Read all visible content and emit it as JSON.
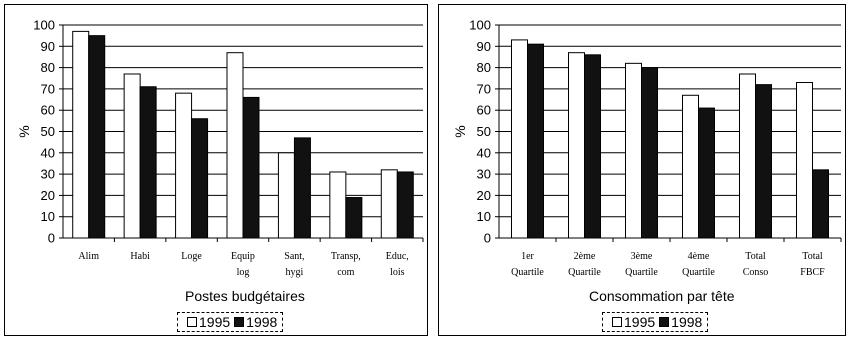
{
  "chart_data": [
    {
      "type": "bar",
      "xlabel": "Postes budgétaires",
      "ylabel": "%",
      "ylim": [
        0,
        100
      ],
      "yticks": [
        0,
        10,
        20,
        30,
        40,
        50,
        60,
        70,
        80,
        90,
        100
      ],
      "grid": "horizontal",
      "legend": "bottom",
      "categories": [
        [
          "Alim"
        ],
        [
          "Habi"
        ],
        [
          "Loge"
        ],
        [
          "Equip",
          "log"
        ],
        [
          "Sant,",
          "hygi"
        ],
        [
          "Transp,",
          "com"
        ],
        [
          "Educ,",
          "lois"
        ]
      ],
      "series": [
        {
          "name": "1995",
          "color": "#ffffff",
          "values": [
            97,
            77,
            68,
            87,
            40,
            31,
            32
          ]
        },
        {
          "name": "1998",
          "color": "#111111",
          "values": [
            95,
            71,
            56,
            66,
            47,
            19,
            31
          ]
        }
      ]
    },
    {
      "type": "bar",
      "xlabel": "Consommation par tête",
      "ylabel": "%",
      "ylim": [
        0,
        100
      ],
      "yticks": [
        0,
        10,
        20,
        30,
        40,
        50,
        60,
        70,
        80,
        90,
        100
      ],
      "grid": "horizontal",
      "legend": "bottom",
      "categories": [
        [
          "1er",
          "Quartile"
        ],
        [
          "2ème",
          "Quartile"
        ],
        [
          "3ème",
          "Quartile"
        ],
        [
          "4ème",
          "Quartile"
        ],
        [
          "Total",
          "Conso"
        ],
        [
          "Total",
          "FBCF"
        ]
      ],
      "series": [
        {
          "name": "1995",
          "color": "#ffffff",
          "values": [
            93,
            87,
            82,
            67,
            77,
            73
          ]
        },
        {
          "name": "1998",
          "color": "#111111",
          "values": [
            91,
            86,
            80,
            61,
            72,
            32
          ]
        }
      ]
    }
  ]
}
